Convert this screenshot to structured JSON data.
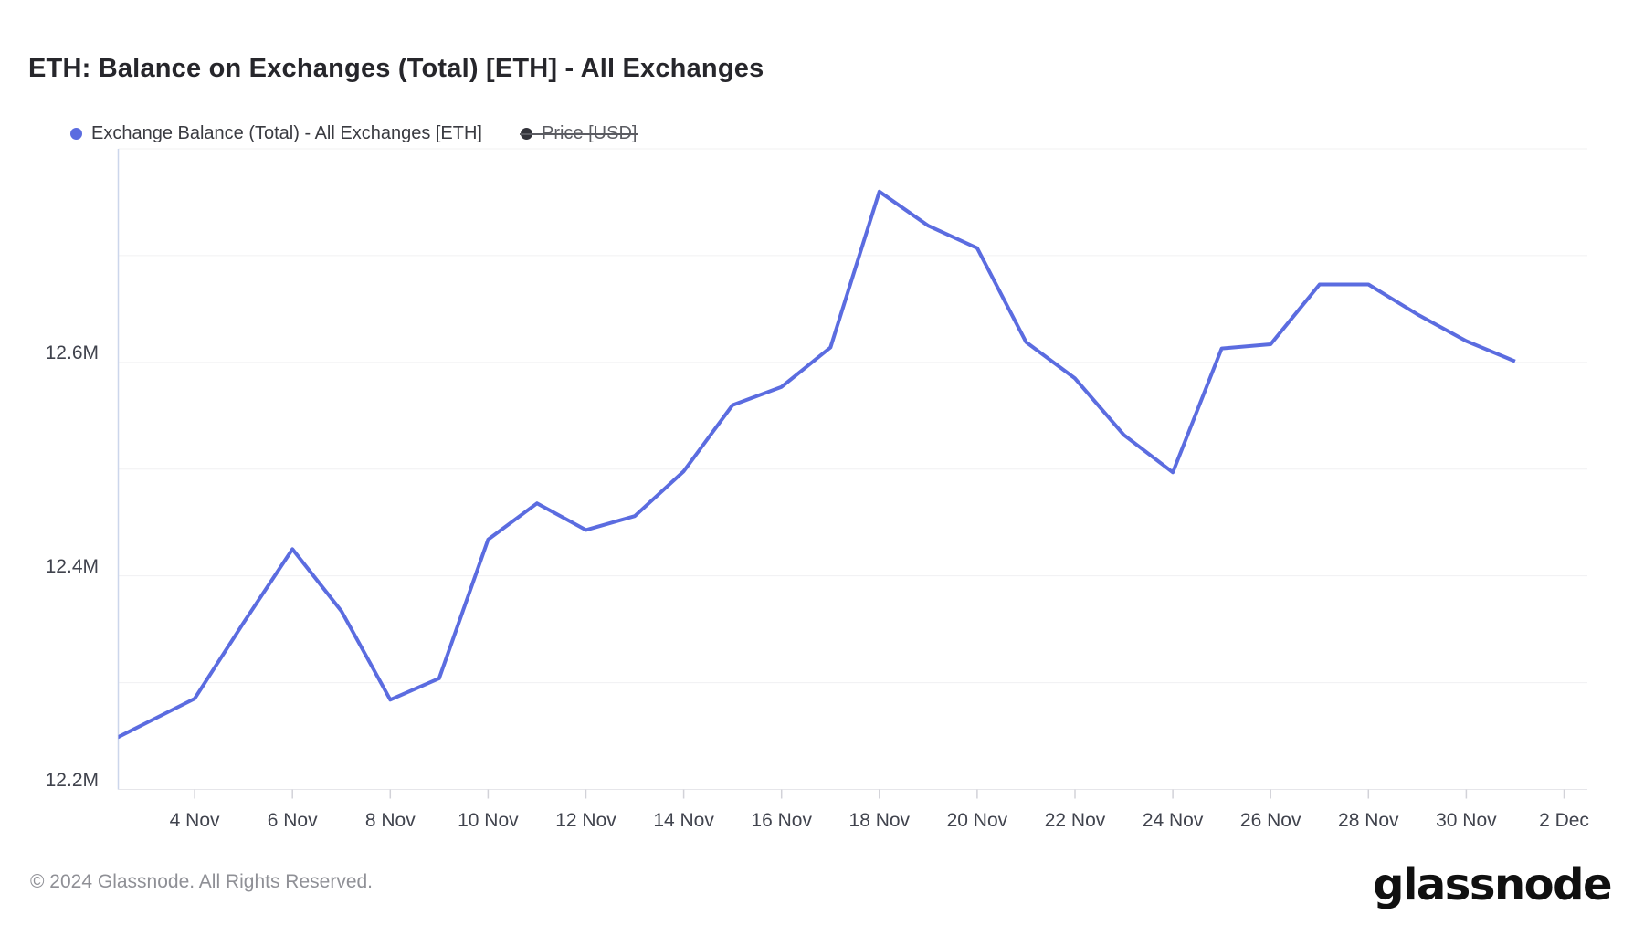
{
  "title": "ETH: Balance on Exchanges (Total) [ETH] - All Exchanges",
  "legend": {
    "items": [
      {
        "label": "Exchange Balance (Total) - All Exchanges [ETH]",
        "color": "#5b6ce0",
        "disabled": false
      },
      {
        "label": "Price [USD]",
        "color": "#32333a",
        "disabled": true
      }
    ]
  },
  "chart_data": {
    "type": "line",
    "title": "ETH: Balance on Exchanges (Total) [ETH] - All Exchanges",
    "x": [
      "2 Nov",
      "3 Nov",
      "4 Nov",
      "5 Nov",
      "6 Nov",
      "7 Nov",
      "8 Nov",
      "9 Nov",
      "10 Nov",
      "11 Nov",
      "12 Nov",
      "13 Nov",
      "14 Nov",
      "15 Nov",
      "16 Nov",
      "17 Nov",
      "18 Nov",
      "19 Nov",
      "20 Nov",
      "21 Nov",
      "22 Nov",
      "23 Nov",
      "24 Nov",
      "25 Nov",
      "26 Nov",
      "27 Nov",
      "28 Nov",
      "29 Nov",
      "30 Nov",
      "1 Dec"
    ],
    "series": [
      {
        "name": "Exchange Balance (Total) - All Exchanges [ETH]",
        "color": "#5b6ce0",
        "unit": "M ETH",
        "values": [
          12.239,
          12.262,
          12.285,
          12.356,
          12.425,
          12.367,
          12.284,
          12.304,
          12.434,
          12.468,
          12.443,
          12.456,
          12.498,
          12.56,
          12.577,
          12.614,
          12.76,
          12.728,
          12.707,
          12.619,
          12.585,
          12.532,
          12.497,
          12.613,
          12.617,
          12.673,
          12.673,
          12.645,
          12.62,
          12.601
        ]
      }
    ],
    "disabled_series": [
      "Price [USD]"
    ],
    "ylim": [
      12.2,
      12.8
    ],
    "gridline_step": 0.1,
    "yticks": {
      "values": [
        12.2,
        12.4,
        12.6
      ],
      "labels": [
        "12.2M",
        "12.4M",
        "12.6M"
      ]
    },
    "xticks": {
      "labels": [
        "4 Nov",
        "6 Nov",
        "8 Nov",
        "10 Nov",
        "12 Nov",
        "14 Nov",
        "16 Nov",
        "18 Nov",
        "20 Nov",
        "22 Nov",
        "24 Nov",
        "26 Nov",
        "28 Nov",
        "30 Nov",
        "2 Dec"
      ],
      "day_offsets": [
        2,
        4,
        6,
        8,
        10,
        12,
        14,
        16,
        18,
        20,
        22,
        24,
        26,
        28,
        30
      ]
    },
    "legend_position": "top-left",
    "grid": "horizontal",
    "style": {
      "grid_color": "#f0f0f2",
      "baseline_color": "#e6e6ea",
      "yaxis_line_color": "#ccd6eb",
      "tick_color": "#d2d2d8",
      "line_width": 4
    }
  },
  "footer": {
    "copyright": "© 2024 Glassnode. All Rights Reserved.",
    "logo": "glassnode"
  }
}
